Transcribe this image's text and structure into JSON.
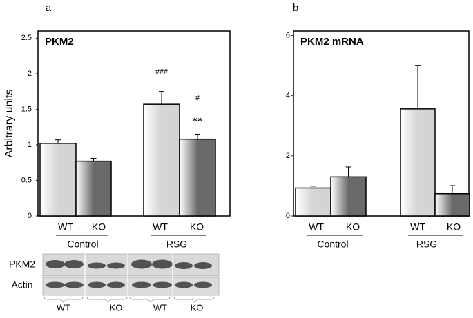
{
  "figure_labels": [
    "a",
    "b"
  ],
  "chart_data": [
    {
      "type": "bar",
      "title": "PKM2",
      "y_label": "Arbitrary units",
      "categories": [
        "WT",
        "KO",
        "WT",
        "KO"
      ],
      "groups": [
        "Control",
        "RSG"
      ],
      "values": [
        1.02,
        0.77,
        1.57,
        1.08
      ],
      "errors": [
        0.05,
        0.04,
        0.18,
        0.07
      ],
      "colors": [
        "#d4d4d4",
        "#6a6a6a",
        "#d4d4d4",
        "#6a6a6a"
      ],
      "ylim": [
        0,
        2.6
      ],
      "yticks": [
        0,
        0.5,
        1,
        1.5,
        2,
        2.5
      ],
      "annotations": [
        "###",
        "#",
        "**"
      ]
    },
    {
      "type": "bar",
      "title": "PKM2 mRNA",
      "categories": [
        "WT",
        "KO",
        "WT",
        "KO"
      ],
      "groups": [
        "Control",
        "RSG"
      ],
      "values": [
        0.93,
        1.3,
        3.56,
        0.74
      ],
      "errors": [
        0.06,
        0.33,
        1.45,
        0.27
      ],
      "colors": [
        "#d4d4d4",
        "#6a6a6a",
        "#d4d4d4",
        "#6a6a6a"
      ],
      "ylim": [
        0,
        6.15
      ],
      "yticks": [
        0,
        2,
        4,
        6
      ]
    }
  ],
  "blot": {
    "rows": [
      "PKM2",
      "Actin"
    ],
    "lanes": [
      "WT",
      "KO",
      "WT",
      "KO"
    ]
  }
}
